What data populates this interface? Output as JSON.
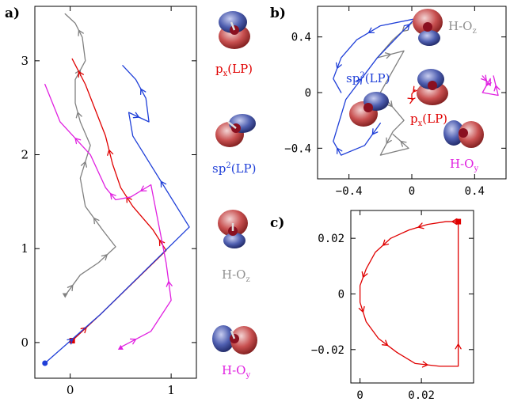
{
  "colors": {
    "red": "#e00000",
    "blue": "#1f3fd8",
    "magenta": "#e020e0",
    "gray": "#808080",
    "lobe_red": "#c85050",
    "lobe_blue": "#4f5fb0"
  },
  "panels": {
    "a": {
      "label": "a)"
    },
    "b": {
      "label": "b)"
    },
    "c": {
      "label": "c)"
    }
  },
  "orbital_labels": {
    "px_lp": {
      "base": "p",
      "sub": "x",
      "rest": "(LP)",
      "color": "#e00000"
    },
    "sp2_lp": {
      "base": "sp",
      "sup": "2",
      "rest": "(LP)",
      "color": "#1f3fd8"
    },
    "h_oz": {
      "base": "H-O",
      "sub": "z",
      "color": "#909090"
    },
    "h_oy": {
      "base": "H-O",
      "sub": "y",
      "color": "#e020e0"
    }
  },
  "chart_data": [
    {
      "id": "a",
      "type": "line",
      "xlim": [
        -0.35,
        1.25
      ],
      "ylim": [
        -0.38,
        3.58
      ],
      "xticks": [
        0,
        1
      ],
      "yticks": [
        0,
        1,
        2,
        3
      ],
      "xtick_labels": [
        "0",
        "1"
      ],
      "ytick_labels": [
        "0",
        "1",
        "2",
        "3"
      ],
      "series": [
        {
          "color_key": "gray",
          "start_marker": "triangle-down",
          "x": [
            -0.05,
            0.1,
            0.28,
            0.45,
            0.32,
            0.15,
            0.1,
            0.2,
            0.1,
            0.05,
            0.05,
            0.15,
            0.12,
            0.05,
            -0.05
          ],
          "y": [
            0.5,
            0.72,
            0.85,
            1.02,
            1.2,
            1.45,
            1.75,
            2.1,
            2.35,
            2.55,
            2.8,
            3.0,
            3.25,
            3.4,
            3.5
          ]
        },
        {
          "color_key": "red",
          "start_marker": "square",
          "x": [
            0.02,
            0.3,
            0.95,
            0.82,
            0.62,
            0.5,
            0.42,
            0.35,
            0.15,
            0.02
          ],
          "y": [
            0.02,
            0.3,
            0.98,
            1.2,
            1.45,
            1.65,
            1.9,
            2.2,
            2.75,
            3.02
          ]
        },
        {
          "color_key": "blue",
          "start_marker": "circle",
          "x": [
            -0.25,
            0.3,
            1.18,
            0.62,
            0.58,
            0.78,
            0.75,
            0.65,
            0.52
          ],
          "y": [
            -0.22,
            0.3,
            1.23,
            2.2,
            2.45,
            2.35,
            2.6,
            2.8,
            2.95
          ]
        },
        {
          "color_key": "magenta",
          "start_marker": "triangle-up",
          "x": [
            0.5,
            0.8,
            1.0,
            0.95,
            0.8,
            0.6,
            0.45,
            0.35,
            0.2,
            -0.1,
            -0.25
          ],
          "y": [
            -0.05,
            0.12,
            0.45,
            0.85,
            1.68,
            1.55,
            1.52,
            1.65,
            2.0,
            2.35,
            2.75
          ]
        }
      ]
    },
    {
      "id": "b",
      "type": "line",
      "xlim": [
        -0.6,
        0.6
      ],
      "ylim": [
        -0.62,
        0.62
      ],
      "xticks": [
        -0.4,
        0,
        0.4
      ],
      "yticks": [
        -0.4,
        0,
        0.4
      ],
      "xtick_labels": [
        "−0.4",
        "0",
        "0.4"
      ],
      "ytick_labels": [
        "−0.4",
        "0",
        "0.4"
      ],
      "series": [
        {
          "color_key": "gray",
          "x": [
            0.0,
            -0.12,
            -0.22,
            -0.05,
            -0.2,
            -0.05,
            -0.12,
            -0.2,
            -0.02,
            -0.12
          ],
          "y": [
            0.5,
            0.38,
            0.25,
            0.3,
            0.0,
            -0.2,
            -0.28,
            -0.45,
            -0.4,
            -0.3
          ]
        },
        {
          "color_key": "red",
          "x": [
            0.02,
            0.0,
            0.0,
            0.02
          ],
          "y": [
            0.02,
            -0.01,
            -0.05,
            -0.04
          ]
        },
        {
          "color_key": "blue",
          "x": [
            -0.2,
            -0.3,
            -0.45,
            -0.5,
            -0.42,
            -0.22,
            -0.05,
            0.02,
            -0.2,
            -0.35,
            -0.45,
            -0.5,
            -0.45
          ],
          "y": [
            -0.22,
            -0.38,
            -0.45,
            -0.35,
            -0.05,
            0.25,
            0.45,
            0.53,
            0.48,
            0.38,
            0.25,
            0.1,
            0.0
          ]
        },
        {
          "color_key": "magenta",
          "x": [
            0.45,
            0.5,
            0.5,
            0.45,
            0.55,
            0.52
          ],
          "y": [
            0.12,
            0.05,
            0.1,
            0.0,
            -0.02,
            0.12
          ]
        }
      ]
    },
    {
      "id": "c",
      "type": "line",
      "xlim": [
        -0.003,
        0.037
      ],
      "ylim": [
        -0.032,
        0.03
      ],
      "xticks": [
        0,
        0.02
      ],
      "yticks": [
        -0.02,
        0,
        0.02
      ],
      "xtick_labels": [
        "0",
        "0.02"
      ],
      "ytick_labels": [
        "−0.02",
        "0",
        "0.02"
      ],
      "series": [
        {
          "color_key": "red",
          "start_marker": "square",
          "x": [
            0.032,
            0.028,
            0.022,
            0.016,
            0.01,
            0.005,
            0.002,
            0.0,
            0.0,
            0.002,
            0.006,
            0.012,
            0.018,
            0.026,
            0.032,
            0.032,
            0.032
          ],
          "y": [
            0.026,
            0.026,
            0.025,
            0.023,
            0.02,
            0.015,
            0.009,
            0.003,
            -0.003,
            -0.01,
            -0.016,
            -0.021,
            -0.025,
            -0.026,
            -0.026,
            -0.01,
            0.026
          ]
        }
      ]
    }
  ]
}
